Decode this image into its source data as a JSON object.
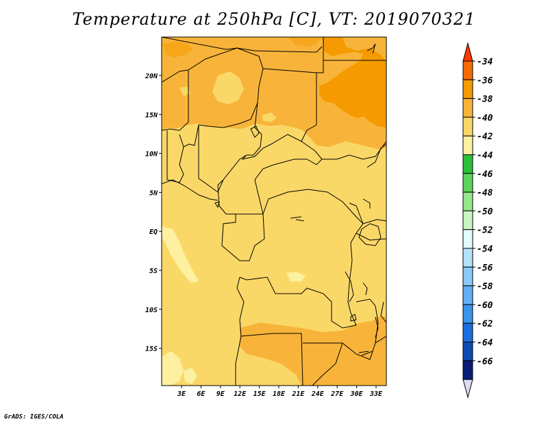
{
  "title": "Temperature at 250hPa [C], VT: 2019070321",
  "credit": "GrADS: IGES/COLA",
  "map": {
    "lat_labels": [
      "20N",
      "15N",
      "10N",
      "5N",
      "EQ",
      "5S",
      "10S",
      "15S"
    ],
    "lon_labels": [
      "3E",
      "6E",
      "9E",
      "12E",
      "15E",
      "18E",
      "21E",
      "24E",
      "27E",
      "30E",
      "33E"
    ]
  },
  "colorbar": {
    "labels": [
      "-34",
      "-36",
      "-38",
      "-40",
      "-42",
      "-44",
      "-46",
      "-48",
      "-50",
      "-52",
      "-54",
      "-56",
      "-58",
      "-60",
      "-62",
      "-64",
      "-66"
    ],
    "colors": [
      "#ff3a00",
      "#f46a00",
      "#f59a00",
      "#f8b43a",
      "#fad868",
      "#fdf0a0",
      "#2cbf3a",
      "#5cd45c",
      "#96e68c",
      "#c8f5c0",
      "#e2fbfc",
      "#b4e2fa",
      "#8ccaf8",
      "#64b0f4",
      "#3c94ec",
      "#1c6ee0",
      "#0c4ab4",
      "#0a1e78",
      "#dcdcf4"
    ]
  },
  "colors": {
    "level_36": "#f59a00",
    "level_38": "#f8b43a",
    "level_40": "#fad868",
    "level_42": "#fdf0a0"
  }
}
